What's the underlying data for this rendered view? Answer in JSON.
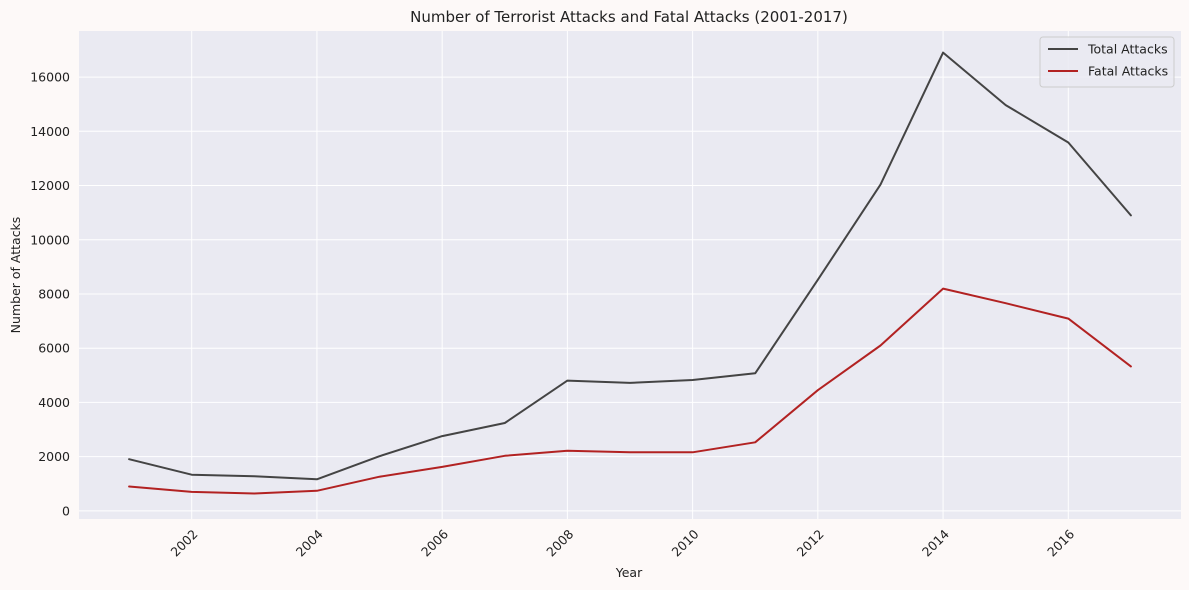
{
  "colors": {
    "page_background": "#fdf9f8",
    "plot_background": "#eaeaf2",
    "grid": "#ffffff",
    "total_attacks": "#444444",
    "fatal_attacks": "#b22222"
  },
  "chart_data": {
    "type": "line",
    "title": "Number of Terrorist Attacks and Fatal Attacks (2001-2017)",
    "xlabel": "Year",
    "ylabel": "Number of Attacks",
    "x": [
      2001,
      2002,
      2003,
      2004,
      2005,
      2006,
      2007,
      2008,
      2009,
      2010,
      2011,
      2012,
      2013,
      2014,
      2015,
      2016,
      2017
    ],
    "series": [
      {
        "name": "Total Attacks",
        "color": "#444444",
        "values": [
          1906,
          1333,
          1278,
          1166,
          2017,
          2758,
          3242,
          4805,
          4721,
          4826,
          5076,
          8522,
          12036,
          16903,
          14965,
          13587,
          10900
        ]
      },
      {
        "name": "Fatal Attacks",
        "color": "#b22222",
        "values": [
          900,
          700,
          640,
          740,
          1260,
          1620,
          2030,
          2220,
          2160,
          2160,
          2530,
          4450,
          6100,
          8200,
          7660,
          7090,
          5330
        ]
      }
    ],
    "xlim": [
      2000.2,
      2017.8
    ],
    "ylim": [
      -300,
      17700
    ],
    "x_ticks": [
      2002,
      2004,
      2006,
      2008,
      2010,
      2012,
      2014,
      2016
    ],
    "y_ticks": [
      0,
      2000,
      4000,
      6000,
      8000,
      10000,
      12000,
      14000,
      16000
    ],
    "x_tick_rotation": 45,
    "grid": true,
    "legend_position": "top-right"
  }
}
